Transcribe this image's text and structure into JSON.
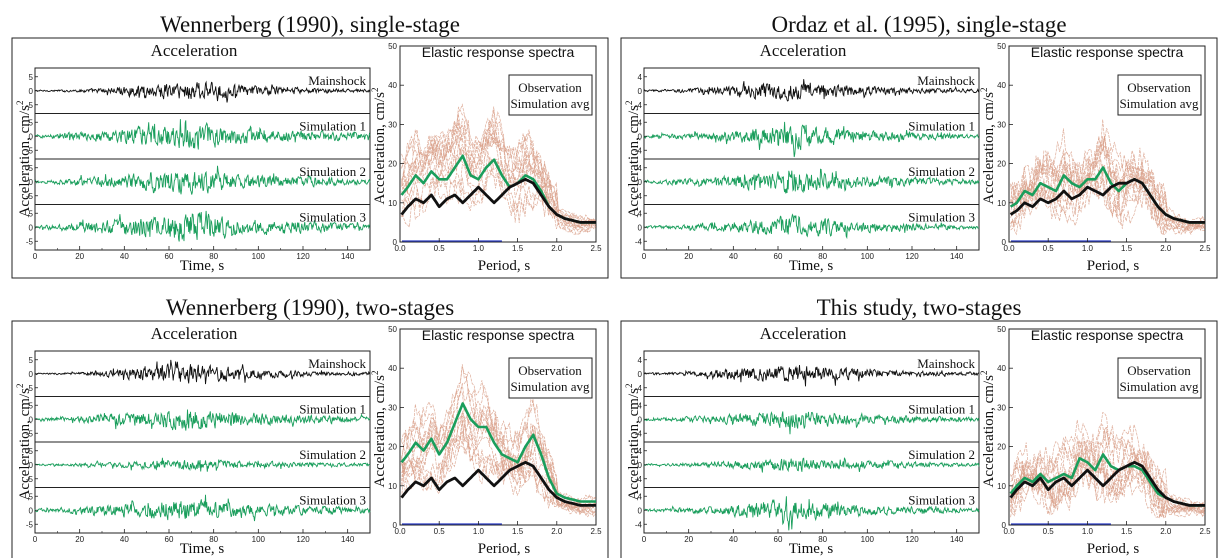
{
  "colors": {
    "observation": "#111111",
    "simulation_avg": "#1a9e5c",
    "simulations": "#d9a089",
    "baseline": "#2b3cc4"
  },
  "chart_data": [
    {
      "type": "line",
      "title": "Wennerberg (1990), single-stage",
      "time_series": {
        "title": "Acceleration",
        "xlabel": "Time, s",
        "ylabel": "Acceleration, cm/s",
        "ylabel_sup": "2",
        "xlim": [
          0,
          150
        ],
        "xticks": [
          "0",
          "20",
          "40",
          "60",
          "80",
          "100",
          "120",
          "140"
        ],
        "traces": [
          {
            "name": "Mainshock",
            "color": "#111111",
            "yticks": [
              "5",
              "0",
              "-5"
            ],
            "envelope": [
              0.3,
              0.4,
              0.6,
              1.2,
              2.0,
              3.0,
              3.6,
              4.2,
              3.4,
              2.6,
              2.0,
              1.6,
              1.2,
              0.9,
              0.8,
              0.7
            ]
          },
          {
            "name": "Simulation 1",
            "color": "#1a9e5c",
            "yticks": [
              "5",
              "0",
              "-5"
            ],
            "envelope": [
              0.6,
              1.2,
              1.6,
              2.4,
              3.2,
              4.0,
              5.0,
              6.0,
              4.6,
              3.6,
              3.0,
              2.6,
              2.2,
              2.0,
              1.6,
              1.2
            ]
          },
          {
            "name": "Simulation 2",
            "color": "#1a9e5c",
            "yticks": [
              "5",
              "0",
              "-5"
            ],
            "envelope": [
              0.6,
              1.0,
              1.6,
              2.2,
              3.0,
              3.8,
              4.6,
              5.4,
              4.2,
              3.2,
              2.6,
              2.2,
              2.0,
              1.8,
              1.4,
              1.0
            ]
          },
          {
            "name": "Simulation 3",
            "color": "#1a9e5c",
            "yticks": [
              "5",
              "0",
              "-5"
            ],
            "envelope": [
              0.6,
              1.2,
              2.0,
              2.8,
              3.6,
              4.4,
              5.4,
              6.6,
              5.0,
              4.0,
              3.2,
              2.8,
              2.4,
              2.0,
              1.6,
              1.2
            ]
          }
        ]
      },
      "response_spectra": {
        "title": "Elastic response spectra",
        "xlabel": "Period, s",
        "ylabel": "Acceleration, cm/s",
        "ylabel_sup": "2",
        "xlim": [
          0,
          2.5
        ],
        "ylim": [
          0,
          50
        ],
        "xticks": [
          "0.0",
          "0.5",
          "1.0",
          "1.5",
          "2.0",
          "2.5"
        ],
        "yticks": [
          "0",
          "10",
          "20",
          "30",
          "40",
          "50"
        ],
        "legend": [
          "Observation",
          "Simulation avg"
        ],
        "period": [
          0.02,
          0.1,
          0.2,
          0.3,
          0.4,
          0.5,
          0.6,
          0.7,
          0.8,
          0.9,
          1.0,
          1.1,
          1.2,
          1.3,
          1.4,
          1.5,
          1.6,
          1.7,
          1.8,
          1.9,
          2.0,
          2.1,
          2.2,
          2.3,
          2.4,
          2.5
        ],
        "observation": [
          7,
          9,
          11,
          10,
          12,
          9,
          11,
          12,
          10,
          12,
          14,
          12,
          10,
          12,
          14,
          15,
          16,
          15,
          12,
          9,
          7,
          6,
          5.5,
          5,
          5,
          5
        ],
        "simulation_avg": [
          12,
          14,
          17,
          15,
          18,
          16,
          16,
          19,
          22,
          17,
          16,
          19,
          21,
          17,
          14,
          15,
          17,
          16,
          13,
          9,
          7,
          6,
          5.5,
          5,
          5,
          5
        ]
      }
    },
    {
      "type": "line",
      "title": "Ordaz et al. (1995), single-stage",
      "time_series": {
        "title": "Acceleration",
        "xlabel": "Time, s",
        "ylabel": "Acceleration, cm/s",
        "ylabel_sup": "2",
        "xlim": [
          0,
          150
        ],
        "xticks": [
          "0",
          "20",
          "40",
          "60",
          "80",
          "100",
          "120",
          "140"
        ],
        "traces": [
          {
            "name": "Mainshock",
            "color": "#111111",
            "yticks": [
              "4",
              "0",
              "-4"
            ],
            "envelope": [
              0.4,
              0.6,
              0.9,
              1.6,
              2.4,
              3.0,
              3.6,
              3.8,
              3.0,
              2.4,
              2.0,
              1.6,
              1.2,
              1.0,
              0.8,
              0.7
            ]
          },
          {
            "name": "Simulation 1",
            "color": "#1a9e5c",
            "yticks": [
              "4",
              "0",
              "-4"
            ],
            "envelope": [
              0.6,
              0.9,
              1.2,
              1.8,
              2.6,
              3.4,
              4.2,
              5.4,
              4.0,
              3.0,
              2.4,
              2.0,
              1.8,
              1.6,
              1.2,
              1.0
            ]
          },
          {
            "name": "Simulation 2",
            "color": "#1a9e5c",
            "yticks": [
              "4",
              "0",
              "-4"
            ],
            "envelope": [
              0.6,
              0.9,
              1.2,
              1.8,
              2.6,
              3.4,
              4.4,
              5.6,
              4.0,
              3.0,
              2.4,
              2.0,
              1.8,
              1.6,
              1.2,
              1.0
            ]
          },
          {
            "name": "Simulation 3",
            "color": "#1a9e5c",
            "yticks": [
              "4",
              "0",
              "-4"
            ],
            "envelope": [
              0.5,
              0.8,
              1.0,
              1.6,
              2.4,
              3.2,
              4.2,
              5.2,
              3.8,
              2.8,
              2.2,
              1.8,
              1.6,
              1.4,
              1.0,
              0.8
            ]
          }
        ]
      },
      "response_spectra": {
        "title": "Elastic response spectra",
        "xlabel": "Period, s",
        "ylabel": "Acceleration, cm/s",
        "ylabel_sup": "2",
        "xlim": [
          0,
          2.5
        ],
        "ylim": [
          0,
          50
        ],
        "xticks": [
          "0.0",
          "0.5",
          "1.0",
          "1.5",
          "2.0",
          "2.5"
        ],
        "yticks": [
          "0",
          "10",
          "20",
          "30",
          "40",
          "50"
        ],
        "legend": [
          "Observation",
          "Simulation avg"
        ],
        "period": [
          0.02,
          0.1,
          0.2,
          0.3,
          0.4,
          0.5,
          0.6,
          0.7,
          0.8,
          0.9,
          1.0,
          1.1,
          1.2,
          1.3,
          1.4,
          1.5,
          1.6,
          1.7,
          1.8,
          1.9,
          2.0,
          2.1,
          2.2,
          2.3,
          2.4,
          2.5
        ],
        "observation": [
          7,
          8,
          10,
          9,
          11,
          10,
          11,
          13,
          11,
          12,
          14,
          13,
          12,
          14,
          15,
          15,
          16,
          15,
          12,
          9,
          7,
          6,
          5.5,
          5,
          5,
          5
        ],
        "simulation_avg": [
          9,
          10,
          13,
          12,
          15,
          14,
          13,
          17,
          15,
          14,
          16,
          16,
          19,
          15,
          13,
          15,
          16,
          15,
          12,
          9,
          7,
          6,
          5.5,
          5,
          5,
          5
        ]
      }
    },
    {
      "type": "line",
      "title": "Wennerberg (1990), two-stages",
      "time_series": {
        "title": "Acceleration",
        "xlabel": "Time, s",
        "ylabel": "Acceleration, cm/s",
        "ylabel_sup": "2",
        "xlim": [
          0,
          150
        ],
        "xticks": [
          "0",
          "20",
          "40",
          "60",
          "80",
          "100",
          "120",
          "140"
        ],
        "traces": [
          {
            "name": "Mainshock",
            "color": "#111111",
            "yticks": [
              "5",
              "0",
              "-5"
            ],
            "envelope": [
              0.3,
              0.4,
              0.6,
              1.2,
              2.0,
              3.0,
              3.6,
              4.2,
              3.4,
              2.6,
              2.0,
              1.6,
              1.2,
              0.9,
              0.8,
              0.7
            ]
          },
          {
            "name": "Simulation 1",
            "color": "#1a9e5c",
            "yticks": [
              "5",
              "0",
              "-5"
            ],
            "envelope": [
              0.5,
              1.0,
              1.4,
              2.0,
              2.8,
              3.4,
              4.2,
              5.0,
              3.8,
              3.0,
              2.6,
              2.2,
              2.0,
              1.8,
              1.4,
              1.0
            ]
          },
          {
            "name": "Simulation 2",
            "color": "#1a9e5c",
            "yticks": [
              "5",
              "0",
              "-5"
            ],
            "envelope": [
              0.4,
              0.6,
              0.8,
              1.0,
              1.4,
              1.8,
              2.2,
              2.6,
              2.0,
              1.6,
              1.4,
              1.2,
              1.0,
              1.0,
              0.8,
              0.6
            ]
          },
          {
            "name": "Simulation 3",
            "color": "#1a9e5c",
            "yticks": [
              "5",
              "0",
              "-5"
            ],
            "envelope": [
              0.6,
              1.0,
              1.6,
              2.2,
              3.0,
              3.6,
              4.4,
              5.0,
              4.0,
              3.2,
              2.6,
              2.2,
              2.0,
              1.8,
              1.4,
              1.0
            ]
          }
        ]
      },
      "response_spectra": {
        "title": "Elastic response spectra",
        "xlabel": "Period, s",
        "ylabel": "Acceleration, cm/s",
        "ylabel_sup": "2",
        "xlim": [
          0,
          2.5
        ],
        "ylim": [
          0,
          50
        ],
        "xticks": [
          "0.0",
          "0.5",
          "1.0",
          "1.5",
          "2.0",
          "2.5"
        ],
        "yticks": [
          "0",
          "10",
          "20",
          "30",
          "40",
          "50"
        ],
        "legend": [
          "Observation",
          "Simulation avg"
        ],
        "period": [
          0.02,
          0.1,
          0.2,
          0.3,
          0.4,
          0.5,
          0.6,
          0.7,
          0.8,
          0.9,
          1.0,
          1.1,
          1.2,
          1.3,
          1.4,
          1.5,
          1.6,
          1.7,
          1.8,
          1.9,
          2.0,
          2.1,
          2.2,
          2.3,
          2.4,
          2.5
        ],
        "observation": [
          7,
          9,
          11,
          10,
          12,
          9,
          11,
          12,
          10,
          12,
          14,
          12,
          10,
          12,
          14,
          15,
          16,
          15,
          12,
          9,
          7,
          6,
          5.5,
          5,
          5,
          5
        ],
        "simulation_avg": [
          16,
          18,
          21,
          19,
          22,
          18,
          21,
          26,
          31,
          27,
          25,
          25,
          21,
          18,
          17,
          16,
          20,
          23,
          18,
          12,
          8,
          7,
          6.5,
          6,
          6,
          6
        ]
      }
    },
    {
      "type": "line",
      "title": "This study, two-stages",
      "time_series": {
        "title": "Acceleration",
        "xlabel": "Time, s",
        "ylabel": "Acceleration, cm/s",
        "ylabel_sup": "2",
        "xlim": [
          0,
          150
        ],
        "xticks": [
          "0",
          "20",
          "40",
          "60",
          "80",
          "100",
          "120",
          "140"
        ],
        "traces": [
          {
            "name": "Mainshock",
            "color": "#111111",
            "yticks": [
              "4",
              "0",
              "-4"
            ],
            "envelope": [
              0.4,
              0.6,
              0.9,
              1.6,
              2.4,
              3.0,
              3.6,
              3.8,
              3.0,
              2.4,
              2.0,
              1.6,
              1.2,
              1.0,
              0.8,
              0.7
            ]
          },
          {
            "name": "Simulation 1",
            "color": "#1a9e5c",
            "yticks": [
              "4",
              "0",
              "-4"
            ],
            "envelope": [
              0.5,
              0.8,
              1.1,
              1.6,
              2.2,
              3.0,
              3.6,
              4.0,
              3.2,
              2.6,
              2.2,
              1.8,
              1.6,
              1.4,
              1.0,
              0.8
            ]
          },
          {
            "name": "Simulation 2",
            "color": "#1a9e5c",
            "yticks": [
              "4",
              "0",
              "-4"
            ],
            "envelope": [
              0.4,
              0.6,
              0.8,
              1.2,
              1.6,
              2.0,
              2.6,
              3.0,
              2.4,
              2.0,
              1.6,
              1.4,
              1.2,
              1.0,
              0.8,
              0.6
            ]
          },
          {
            "name": "Simulation 3",
            "color": "#1a9e5c",
            "yticks": [
              "4",
              "0",
              "-4"
            ],
            "envelope": [
              0.5,
              0.8,
              1.1,
              1.6,
              2.4,
              3.4,
              4.4,
              5.4,
              3.8,
              2.8,
              2.2,
              1.8,
              1.6,
              1.4,
              1.0,
              0.8
            ]
          }
        ]
      },
      "response_spectra": {
        "title": "Elastic response spectra",
        "xlabel": "Period, s",
        "ylabel": "Acceleration, cm/s",
        "ylabel_sup": "2",
        "xlim": [
          0,
          2.5
        ],
        "ylim": [
          0,
          50
        ],
        "xticks": [
          "0.0",
          "0.5",
          "1.0",
          "1.5",
          "2.0",
          "2.5"
        ],
        "yticks": [
          "0",
          "10",
          "20",
          "30",
          "40",
          "50"
        ],
        "legend": [
          "Observation",
          "Simulation avg"
        ],
        "period": [
          0.02,
          0.1,
          0.2,
          0.3,
          0.4,
          0.5,
          0.6,
          0.7,
          0.8,
          0.9,
          1.0,
          1.1,
          1.2,
          1.3,
          1.4,
          1.5,
          1.6,
          1.7,
          1.8,
          1.9,
          2.0,
          2.1,
          2.2,
          2.3,
          2.4,
          2.5
        ],
        "observation": [
          7,
          9,
          11,
          10,
          12,
          9,
          11,
          12,
          10,
          12,
          14,
          12,
          10,
          12,
          14,
          15,
          16,
          15,
          12,
          9,
          7,
          6,
          5.5,
          5,
          5,
          5
        ],
        "simulation_avg": [
          8,
          10,
          12,
          11,
          13,
          11,
          12,
          13,
          12,
          17,
          16,
          14,
          18,
          15,
          14,
          15,
          15,
          14,
          11,
          8,
          7,
          6,
          5.5,
          5,
          5,
          5
        ]
      }
    }
  ]
}
